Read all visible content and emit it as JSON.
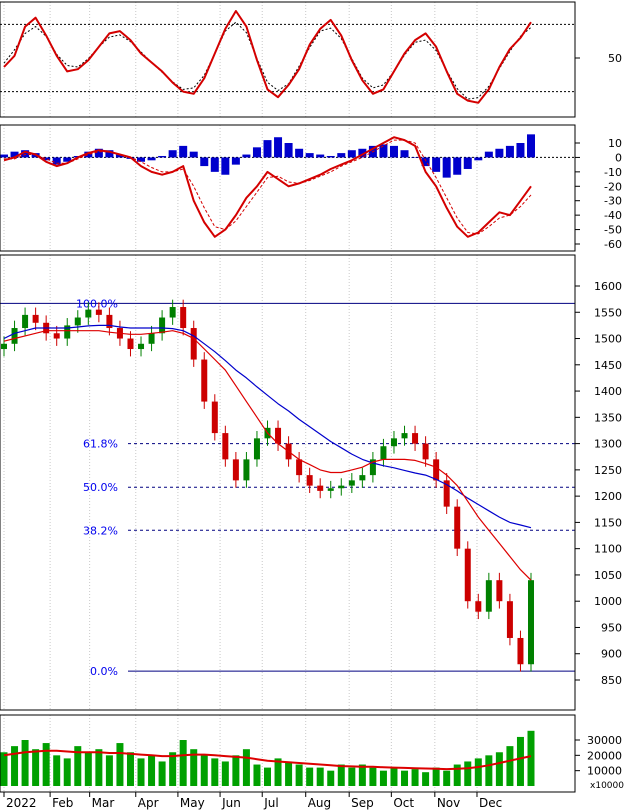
{
  "colors": {
    "rsi_line": "#d40000",
    "signal_dash": "#000000",
    "macd_hist": "#0000cc",
    "candle_up": "#008000",
    "candle_down": "#cc0000",
    "ma_short": "#dd0000",
    "ma_long": "#0000cc",
    "fib_line": "#000080",
    "fib_text": "#0000ee",
    "volume_bar": "#00a000",
    "volume_ma": "#dd0000"
  },
  "chart_data": [
    {
      "type": "line",
      "panel": "rsi",
      "ylim": [
        0,
        100
      ],
      "yticks": [
        {
          "value": 50,
          "label": "50"
        }
      ],
      "reference_lines": [
        80,
        20
      ],
      "x": [
        0,
        4,
        8,
        12,
        16,
        20,
        24,
        28,
        32,
        36,
        40,
        44,
        48,
        52,
        56,
        60,
        64,
        68,
        72,
        76,
        80,
        84,
        88,
        92,
        96,
        100,
        104,
        108,
        112,
        116,
        120,
        124,
        128,
        132,
        136,
        140,
        144,
        148,
        152,
        156,
        160,
        164,
        168,
        172,
        176,
        180,
        184,
        188,
        192,
        196,
        200
      ],
      "series": [
        {
          "name": "",
          "values": [
            42,
            52,
            78,
            86,
            70,
            52,
            38,
            40,
            48,
            60,
            72,
            74,
            66,
            54,
            46,
            38,
            28,
            20,
            18,
            32,
            54,
            76,
            92,
            78,
            48,
            22,
            15,
            26,
            40,
            62,
            76,
            84,
            70,
            48,
            30,
            18,
            22,
            38,
            54,
            66,
            72,
            60,
            38,
            18,
            12,
            10,
            22,
            42,
            58,
            68,
            82
          ]
        }
      ]
    },
    {
      "type": "bar",
      "panel": "macd",
      "ylim": [
        -64,
        20
      ],
      "yticks": [
        {
          "value": 10,
          "label": "10"
        },
        {
          "value": 0,
          "label": "0"
        },
        {
          "value": -10,
          "label": "-10"
        },
        {
          "value": -20,
          "label": "-20"
        },
        {
          "value": -30,
          "label": "-30"
        },
        {
          "value": -40,
          "label": "-40"
        },
        {
          "value": -50,
          "label": "-50"
        },
        {
          "value": -60,
          "label": "-60"
        }
      ],
      "x": [
        0,
        4,
        8,
        12,
        16,
        20,
        24,
        28,
        32,
        36,
        40,
        44,
        48,
        52,
        56,
        60,
        64,
        68,
        72,
        76,
        80,
        84,
        88,
        92,
        96,
        100,
        104,
        108,
        112,
        116,
        120,
        124,
        128,
        132,
        136,
        140,
        144,
        148,
        152,
        156,
        160,
        164,
        168,
        172,
        176,
        180,
        184,
        188,
        192,
        196,
        200
      ],
      "histogram": [
        2,
        4,
        5,
        3,
        -2,
        -5,
        -3,
        1,
        4,
        6,
        5,
        2,
        -1,
        -3,
        -2,
        1,
        5,
        8,
        4,
        -6,
        -10,
        -12,
        -5,
        2,
        7,
        12,
        14,
        10,
        6,
        3,
        2,
        1,
        3,
        5,
        6,
        8,
        9,
        8,
        5,
        0,
        -6,
        -10,
        -14,
        -12,
        -8,
        -2,
        4,
        6,
        8,
        10,
        16
      ],
      "series": [
        {
          "name": "",
          "values": [
            -2,
            0,
            4,
            2,
            -3,
            -6,
            -4,
            0,
            3,
            5,
            4,
            2,
            0,
            -6,
            -10,
            -12,
            -10,
            -6,
            -30,
            -45,
            -55,
            -50,
            -40,
            -28,
            -20,
            -10,
            -15,
            -20,
            -18,
            -15,
            -12,
            -8,
            -5,
            -2,
            2,
            6,
            10,
            14,
            12,
            8,
            -10,
            -20,
            -35,
            -48,
            -55,
            -52,
            -45,
            -38,
            -40,
            -30,
            -20
          ]
        },
        {
          "name": "",
          "values": [
            -1,
            -1,
            2,
            2,
            -1,
            -4,
            -4,
            -1,
            2,
            4,
            4,
            2,
            0,
            -3,
            -7,
            -10,
            -10,
            -8,
            -20,
            -35,
            -48,
            -50,
            -44,
            -34,
            -24,
            -14,
            -13,
            -17,
            -18,
            -16,
            -13,
            -10,
            -6,
            -3,
            0,
            4,
            8,
            12,
            12,
            10,
            -2,
            -14,
            -28,
            -42,
            -52,
            -53,
            -48,
            -42,
            -40,
            -34,
            -26
          ]
        }
      ]
    },
    {
      "type": "line",
      "panel": "price",
      "ylim": [
        820,
        1640
      ],
      "yticks": [
        {
          "value": 1600,
          "label": "1600"
        },
        {
          "value": 1550,
          "label": "1550"
        },
        {
          "value": 1500,
          "label": "1500"
        },
        {
          "value": 1450,
          "label": "1450"
        },
        {
          "value": 1400,
          "label": "1400"
        },
        {
          "value": 1350,
          "label": "1350"
        },
        {
          "value": 1300,
          "label": "1300"
        },
        {
          "value": 1250,
          "label": "1250"
        },
        {
          "value": 1200,
          "label": "1200"
        },
        {
          "value": 1150,
          "label": "1150"
        },
        {
          "value": 1100,
          "label": "1100"
        },
        {
          "value": 1050,
          "label": "1050"
        },
        {
          "value": 1000,
          "label": "1000"
        },
        {
          "value": 950,
          "label": "950"
        },
        {
          "value": 900,
          "label": "900"
        },
        {
          "value": 850,
          "label": "850"
        }
      ],
      "fibonacci": [
        {
          "label": "100.0%",
          "value": 1567
        },
        {
          "label": "61.8%",
          "value": 1300
        },
        {
          "label": "50.0%",
          "value": 1217
        },
        {
          "label": "38.2%",
          "value": 1135
        },
        {
          "label": "0.0%",
          "value": 867
        }
      ],
      "x": [
        0,
        4,
        8,
        12,
        16,
        20,
        24,
        28,
        32,
        36,
        40,
        44,
        48,
        52,
        56,
        60,
        64,
        68,
        72,
        76,
        80,
        84,
        88,
        92,
        96,
        100,
        104,
        108,
        112,
        116,
        120,
        124,
        128,
        132,
        136,
        140,
        144,
        148,
        152,
        156,
        160,
        164,
        168,
        172,
        176,
        180,
        184,
        188,
        192,
        196,
        200
      ],
      "series": [
        {
          "name": "",
          "values": [
            1490,
            1520,
            1545,
            1530,
            1510,
            1500,
            1525,
            1540,
            1555,
            1545,
            1520,
            1500,
            1480,
            1490,
            1510,
            1540,
            1560,
            1520,
            1460,
            1380,
            1320,
            1270,
            1230,
            1270,
            1310,
            1330,
            1300,
            1270,
            1240,
            1220,
            1210,
            1215,
            1220,
            1230,
            1240,
            1270,
            1295,
            1310,
            1320,
            1300,
            1270,
            1230,
            1180,
            1100,
            1000,
            980,
            1040,
            1000,
            930,
            880,
            1040
          ]
        },
        {
          "name": "",
          "values": [
            1500,
            1510,
            1515,
            1520,
            1520,
            1520,
            1520,
            1522,
            1524,
            1525,
            1525,
            1522,
            1520,
            1520,
            1520,
            1520,
            1519,
            1515,
            1505,
            1490,
            1475,
            1458,
            1440,
            1425,
            1408,
            1392,
            1376,
            1362,
            1346,
            1332,
            1318,
            1304,
            1292,
            1280,
            1270,
            1263,
            1258,
            1254,
            1249,
            1244,
            1240,
            1232,
            1222,
            1210,
            1196,
            1184,
            1172,
            1160,
            1150,
            1145,
            1140
          ]
        },
        {
          "name": "",
          "values": [
            1495,
            1500,
            1505,
            1510,
            1515,
            1515,
            1515,
            1515,
            1515,
            1515,
            1512,
            1510,
            1508,
            1508,
            1510,
            1512,
            1515,
            1510,
            1500,
            1480,
            1460,
            1440,
            1410,
            1380,
            1350,
            1320,
            1300,
            1285,
            1270,
            1260,
            1250,
            1245,
            1245,
            1250,
            1255,
            1265,
            1270,
            1270,
            1270,
            1268,
            1262,
            1255,
            1240,
            1220,
            1190,
            1160,
            1135,
            1110,
            1085,
            1060,
            1040
          ]
        }
      ]
    },
    {
      "type": "bar",
      "panel": "volume",
      "ylim": [
        0,
        40000
      ],
      "unit_label": "x10000",
      "yticks": [
        {
          "value": 30000,
          "label": "30000"
        },
        {
          "value": 20000,
          "label": "20000"
        },
        {
          "value": 10000,
          "label": "10000"
        }
      ],
      "x": [
        0,
        4,
        8,
        12,
        16,
        20,
        24,
        28,
        32,
        36,
        40,
        44,
        48,
        52,
        56,
        60,
        64,
        68,
        72,
        76,
        80,
        84,
        88,
        92,
        96,
        100,
        104,
        108,
        112,
        116,
        120,
        124,
        128,
        132,
        136,
        140,
        144,
        148,
        152,
        156,
        160,
        164,
        168,
        172,
        176,
        180,
        184,
        188,
        192,
        196,
        200
      ],
      "values": [
        22000,
        26000,
        30000,
        24000,
        28000,
        20000,
        18000,
        26000,
        22000,
        24000,
        20000,
        28000,
        22000,
        18000,
        20000,
        16000,
        22000,
        30000,
        24000,
        20000,
        18000,
        16000,
        20000,
        24000,
        14000,
        12000,
        18000,
        16000,
        14000,
        12000,
        12000,
        10000,
        14000,
        12000,
        14000,
        12000,
        10000,
        12000,
        10000,
        11000,
        9000,
        12000,
        10000,
        14000,
        16000,
        18000,
        20000,
        22000,
        26000,
        32000,
        36000
      ],
      "series": [
        {
          "name": "",
          "values": [
            20000,
            21000,
            22000,
            22500,
            23000,
            23000,
            22500,
            22000,
            22000,
            22000,
            21500,
            21500,
            21000,
            20500,
            20000,
            19500,
            19500,
            20000,
            20500,
            20500,
            20000,
            19500,
            19000,
            18500,
            17500,
            16500,
            16000,
            15500,
            15000,
            14500,
            14000,
            13500,
            13000,
            12800,
            12600,
            12500,
            12200,
            12000,
            11800,
            11600,
            11400,
            11200,
            11000,
            11200,
            11600,
            12400,
            13500,
            15000,
            16500,
            18000,
            19500
          ]
        }
      ]
    }
  ],
  "x_axis": {
    "labels": [
      {
        "x": 0,
        "label": "2022"
      },
      {
        "x": 17.5,
        "label": "Feb"
      },
      {
        "x": 32.5,
        "label": "Mar"
      },
      {
        "x": 50,
        "label": "Apr"
      },
      {
        "x": 66,
        "label": "May"
      },
      {
        "x": 82,
        "label": "Jun"
      },
      {
        "x": 98,
        "label": "Jul"
      },
      {
        "x": 114.5,
        "label": "Aug"
      },
      {
        "x": 131,
        "label": "Sep"
      },
      {
        "x": 147,
        "label": "Oct"
      },
      {
        "x": 163.5,
        "label": "Nov"
      },
      {
        "x": 179.5,
        "label": "Dec"
      }
    ]
  }
}
